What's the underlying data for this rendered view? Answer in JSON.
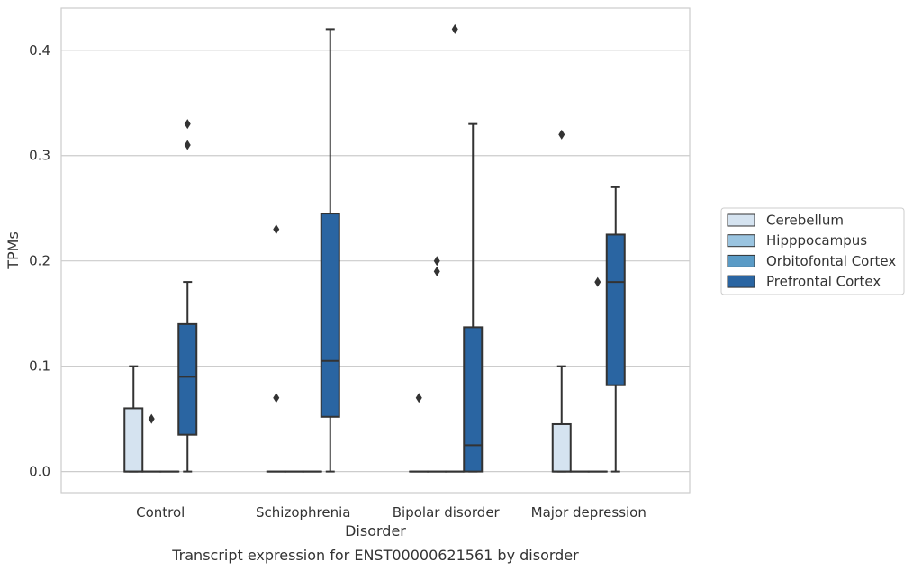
{
  "chart_data": {
    "type": "box",
    "caption": "Transcript expression for ENST00000621561 by disorder",
    "xlabel": "Disorder",
    "ylabel": "TPMs",
    "ylim": [
      -0.02,
      0.44
    ],
    "yticks": [
      0.0,
      0.1,
      0.2,
      0.3,
      0.4
    ],
    "ytick_labels": [
      "0.0",
      "0.1",
      "0.2",
      "0.3",
      "0.4"
    ],
    "grid": "horizontal",
    "legend_position": "right",
    "categories": [
      "Control",
      "Schizophrenia",
      "Bipolar disorder",
      "Major depression"
    ],
    "series": [
      {
        "name": "Cerebellum",
        "color": "#d5e3f0",
        "boxes": [
          {
            "q1": 0.0,
            "median": 0.0,
            "q3": 0.06,
            "whislo": 0.0,
            "whishi": 0.1,
            "fliers": []
          },
          {
            "q1": 0.0,
            "median": 0.0,
            "q3": 0.0,
            "whislo": 0.0,
            "whishi": 0.0,
            "fliers": [
              0.07,
              0.23
            ]
          },
          {
            "q1": 0.0,
            "median": 0.0,
            "q3": 0.0,
            "whislo": 0.0,
            "whishi": 0.0,
            "fliers": [
              0.07
            ]
          },
          {
            "q1": 0.0,
            "median": 0.0,
            "q3": 0.045,
            "whislo": 0.0,
            "whishi": 0.1,
            "fliers": [
              0.32
            ]
          }
        ]
      },
      {
        "name": "Hipppocampus",
        "color": "#9ac4e0",
        "boxes": [
          {
            "q1": 0.0,
            "median": 0.0,
            "q3": 0.0,
            "whislo": 0.0,
            "whishi": 0.0,
            "fliers": [
              0.05
            ]
          },
          {
            "q1": 0.0,
            "median": 0.0,
            "q3": 0.0,
            "whislo": 0.0,
            "whishi": 0.0,
            "fliers": []
          },
          {
            "q1": 0.0,
            "median": 0.0,
            "q3": 0.0,
            "whislo": 0.0,
            "whishi": 0.0,
            "fliers": [
              0.19,
              0.2
            ]
          },
          {
            "q1": 0.0,
            "median": 0.0,
            "q3": 0.0,
            "whislo": 0.0,
            "whishi": 0.0,
            "fliers": []
          }
        ]
      },
      {
        "name": "Orbitofontal Cortex",
        "color": "#5a9bc6",
        "boxes": [
          {
            "q1": 0.0,
            "median": 0.0,
            "q3": 0.0,
            "whislo": 0.0,
            "whishi": 0.0,
            "fliers": []
          },
          {
            "q1": 0.0,
            "median": 0.0,
            "q3": 0.0,
            "whislo": 0.0,
            "whishi": 0.0,
            "fliers": []
          },
          {
            "q1": 0.0,
            "median": 0.0,
            "q3": 0.0,
            "whislo": 0.0,
            "whishi": 0.0,
            "fliers": [
              0.42
            ]
          },
          {
            "q1": 0.0,
            "median": 0.0,
            "q3": 0.0,
            "whislo": 0.0,
            "whishi": 0.0,
            "fliers": [
              0.18
            ]
          }
        ]
      },
      {
        "name": "Prefrontal Cortex",
        "color": "#2a65a2",
        "boxes": [
          {
            "q1": 0.035,
            "median": 0.09,
            "q3": 0.14,
            "whislo": 0.0,
            "whishi": 0.18,
            "fliers": [
              0.31,
              0.33
            ]
          },
          {
            "q1": 0.052,
            "median": 0.105,
            "q3": 0.245,
            "whislo": 0.0,
            "whishi": 0.42,
            "fliers": []
          },
          {
            "q1": 0.0,
            "median": 0.025,
            "q3": 0.137,
            "whislo": 0.0,
            "whishi": 0.33,
            "fliers": []
          },
          {
            "q1": 0.082,
            "median": 0.18,
            "q3": 0.225,
            "whislo": 0.0,
            "whishi": 0.27,
            "fliers": []
          }
        ]
      }
    ]
  }
}
